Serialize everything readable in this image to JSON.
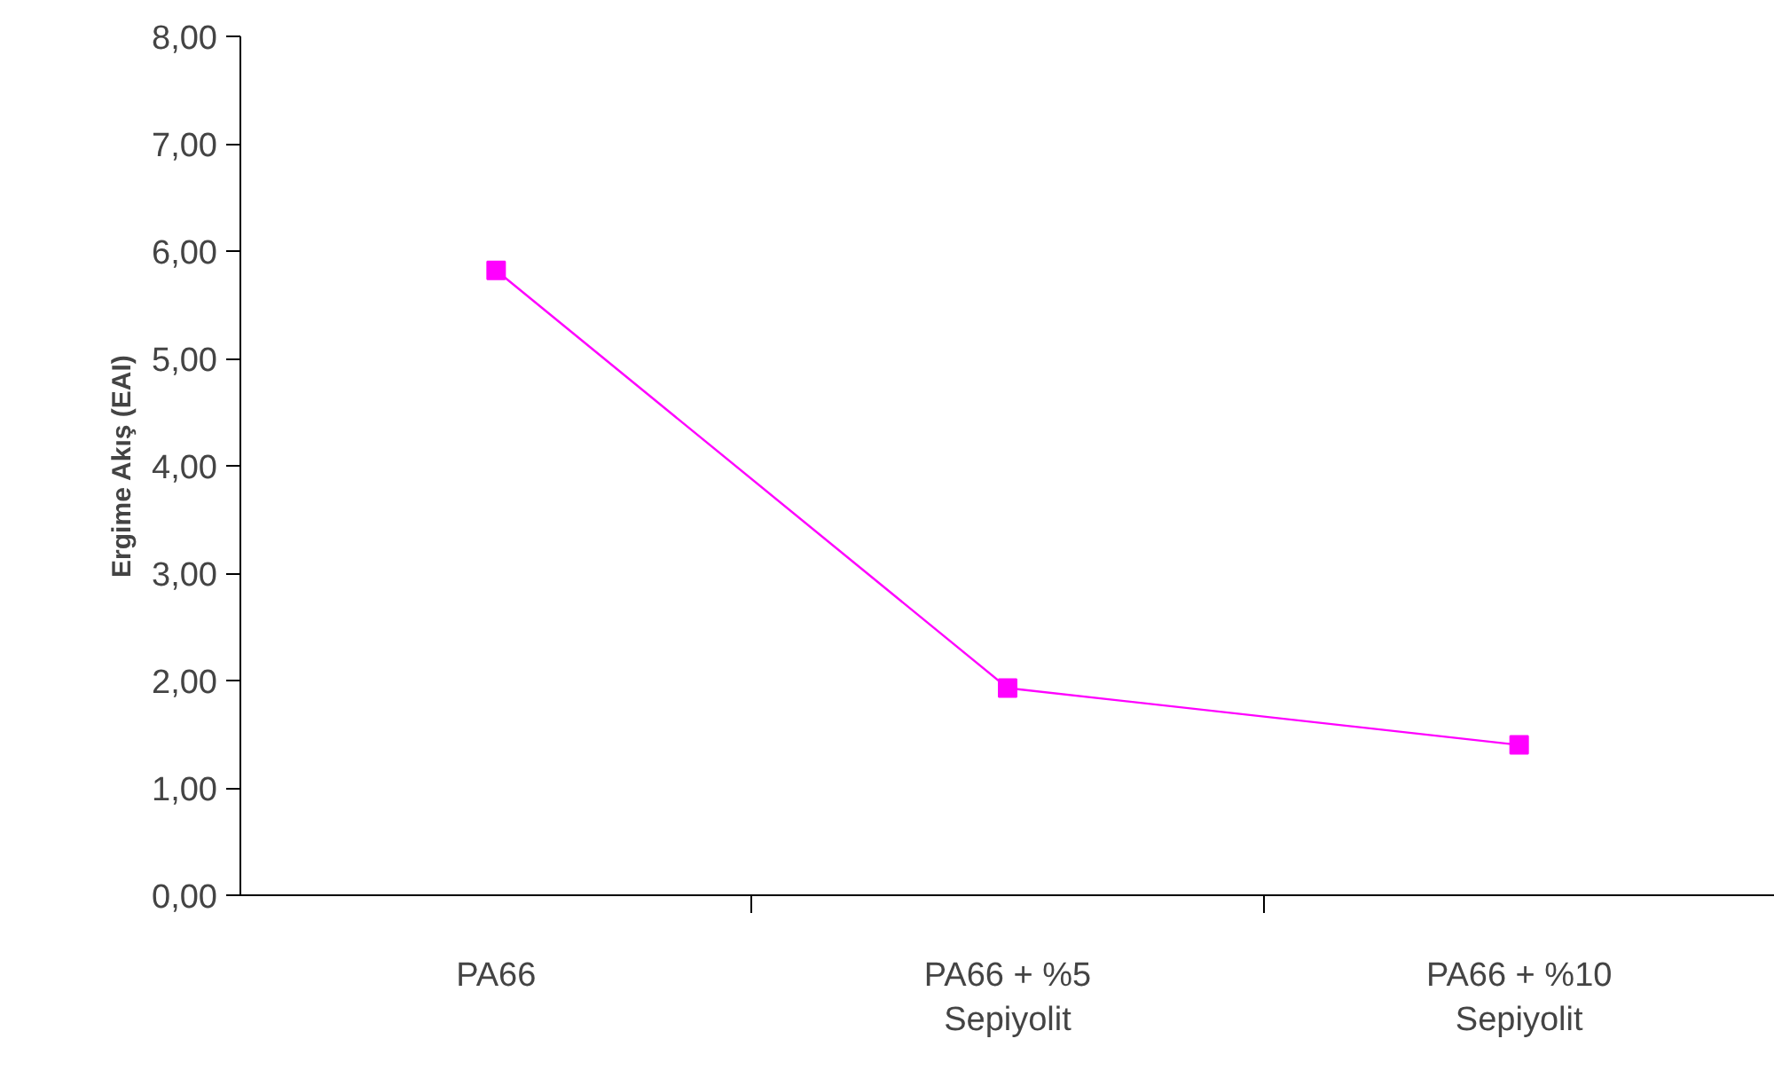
{
  "chart_data": {
    "type": "line",
    "ylabel": "Ergime Akış (EAI)",
    "categories": [
      "PA66",
      "PA66 + %5\nSepiyolit",
      "PA66 + %10\nSepiyolit"
    ],
    "series": [
      {
        "color": "#ff00ff",
        "values": [
          5.82,
          1.93,
          1.4
        ]
      }
    ],
    "ylim": [
      0,
      8
    ],
    "yticks": [
      {
        "value": 0,
        "label": "0,00"
      },
      {
        "value": 1,
        "label": "1,00"
      },
      {
        "value": 2,
        "label": "2,00"
      },
      {
        "value": 3,
        "label": "3,00"
      },
      {
        "value": 4,
        "label": "4,00"
      },
      {
        "value": 5,
        "label": "5,00"
      },
      {
        "value": 6,
        "label": "6,00"
      },
      {
        "value": 7,
        "label": "7,00"
      },
      {
        "value": 8,
        "label": "8,00"
      }
    ],
    "grid": false,
    "marker": "square",
    "line_style": "solid"
  }
}
